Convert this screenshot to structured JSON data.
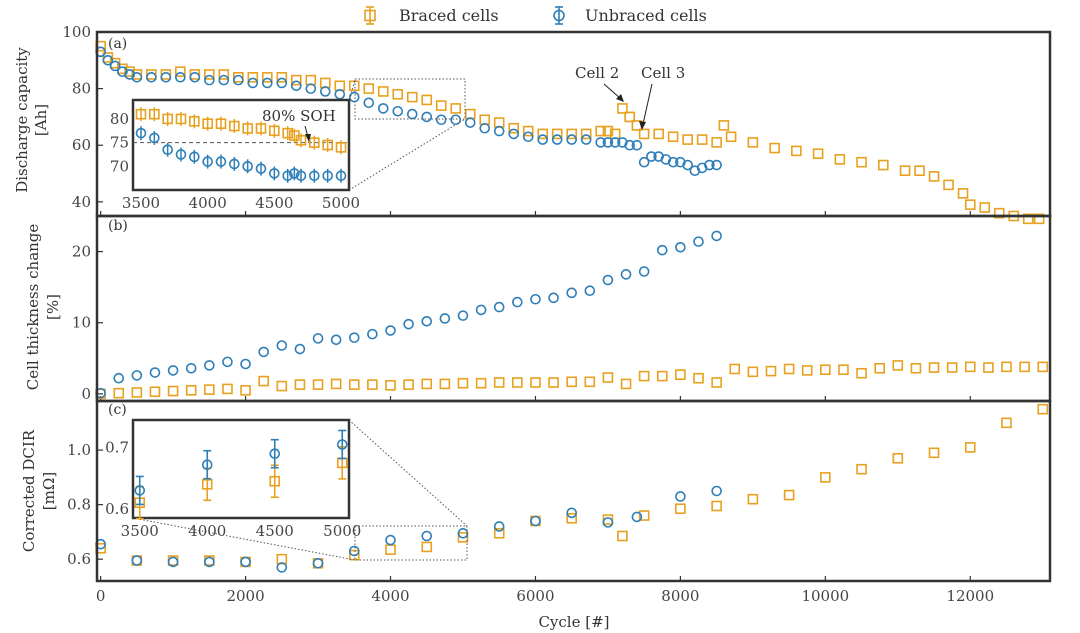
{
  "colors": {
    "braced": "#E8A01E",
    "unbraced": "#2E7FB8",
    "frame": "#333333"
  },
  "legend": {
    "braced_label": "Braced cells",
    "unbraced_label": "Unbraced cells"
  },
  "chart_data": [
    {
      "panel": "(a)",
      "type": "scatter",
      "ylabel_line1": "Discharge capacity",
      "ylabel_line2": "[Ah]",
      "xlim": [
        -50,
        13100
      ],
      "ylim": [
        35,
        100
      ],
      "yticks": [
        40,
        60,
        80,
        100
      ],
      "annotations": {
        "cell2": "Cell 2",
        "cell3": "Cell 3"
      },
      "series": [
        {
          "name": "Braced cells",
          "marker": "square",
          "x": [
            0,
            100,
            200,
            300,
            400,
            500,
            700,
            900,
            1100,
            1300,
            1500,
            1700,
            1900,
            2100,
            2300,
            2500,
            2700,
            2900,
            3100,
            3300,
            3500,
            3700,
            3900,
            4100,
            4300,
            4500,
            4700,
            4900,
            5100,
            5300,
            5500,
            5700,
            5900,
            6100,
            6300,
            6500,
            6700,
            6900,
            7000,
            7100,
            7200,
            7300,
            7400,
            7500,
            7700,
            7900,
            8100,
            8300,
            8500,
            8600,
            8700,
            9000,
            9300,
            9600,
            9900,
            10200,
            10500,
            10800,
            11100,
            11300,
            11500,
            11700,
            11900,
            12000,
            12200,
            12400,
            12600,
            12800,
            12950
          ],
          "y": [
            95,
            91,
            89,
            87,
            86,
            85,
            85,
            85,
            86,
            85,
            85,
            85,
            84,
            84,
            84,
            84,
            83,
            83,
            82,
            81,
            81,
            80,
            79,
            78,
            77,
            76,
            74,
            73,
            71,
            69,
            68,
            66,
            65,
            64,
            64,
            64,
            64,
            65,
            65,
            64,
            73,
            70,
            67,
            64,
            64,
            63,
            62,
            62,
            61,
            67,
            63,
            61,
            59,
            58,
            57,
            55,
            54,
            53,
            51,
            51,
            49,
            46,
            43,
            39,
            38,
            36,
            35,
            34,
            34
          ]
        },
        {
          "name": "Unbraced cells",
          "marker": "circle",
          "x": [
            0,
            100,
            200,
            300,
            400,
            500,
            700,
            900,
            1100,
            1300,
            1500,
            1700,
            1900,
            2100,
            2300,
            2500,
            2700,
            2900,
            3100,
            3300,
            3500,
            3700,
            3900,
            4100,
            4300,
            4500,
            4700,
            4900,
            5100,
            5300,
            5500,
            5700,
            5900,
            6100,
            6300,
            6500,
            6700,
            6900,
            7000,
            7100,
            7200,
            7300,
            7400,
            7500,
            7600,
            7700,
            7800,
            7900,
            8000,
            8100,
            8200,
            8300,
            8400,
            8500
          ],
          "y": [
            93,
            90,
            88,
            86,
            85,
            84,
            84,
            84,
            84,
            84,
            83,
            83,
            83,
            82,
            82,
            82,
            81,
            80,
            79,
            78,
            77,
            75,
            73,
            72,
            71,
            70,
            69,
            69,
            68,
            66,
            65,
            64,
            63,
            62,
            62,
            62,
            62,
            61,
            61,
            61,
            61,
            60,
            60,
            54,
            56,
            56,
            55,
            54,
            54,
            53,
            51,
            52,
            53,
            53
          ]
        }
      ],
      "inset": {
        "xlim": [
          3500,
          5000
        ],
        "ylim": [
          65,
          84
        ],
        "xticks": [
          3500,
          4000,
          4500,
          5000
        ],
        "yticks": [
          70,
          75,
          80
        ],
        "ref_line_y": 75,
        "annotation": "80% SOH",
        "braced": {
          "x": [
            3500,
            3600,
            3700,
            3800,
            3900,
            4000,
            4100,
            4200,
            4300,
            4400,
            4500,
            4600,
            4650,
            4700,
            4800,
            4900,
            5000
          ],
          "y": [
            81,
            81,
            80,
            80,
            79.5,
            79,
            79,
            78.5,
            78,
            78,
            77.5,
            77,
            76.5,
            75.5,
            75,
            74.5,
            74
          ]
        },
        "unbraced": {
          "x": [
            3500,
            3600,
            3700,
            3800,
            3900,
            4000,
            4100,
            4200,
            4300,
            4400,
            4500,
            4600,
            4650,
            4700,
            4800,
            4900,
            5000
          ],
          "y": [
            77,
            76,
            73.5,
            72.5,
            72,
            71,
            71,
            70.5,
            70,
            69.5,
            68.5,
            68,
            68.5,
            68,
            68,
            68,
            68
          ]
        }
      }
    },
    {
      "panel": "(b)",
      "type": "scatter",
      "ylabel_line1": "Cell thickness change",
      "ylabel_line2": "[%]",
      "xlim": [
        -50,
        13100
      ],
      "ylim": [
        -1,
        25
      ],
      "yticks": [
        0,
        10,
        20
      ],
      "series": [
        {
          "name": "Braced cells",
          "marker": "square",
          "x": [
            0,
            250,
            500,
            750,
            1000,
            1250,
            1500,
            1750,
            2000,
            2250,
            2500,
            2750,
            3000,
            3250,
            3500,
            3750,
            4000,
            4250,
            4500,
            4750,
            5000,
            5250,
            5500,
            5750,
            6000,
            6250,
            6500,
            6750,
            7000,
            7250,
            7500,
            7750,
            8000,
            8250,
            8500,
            8750,
            9000,
            9250,
            9500,
            9750,
            10000,
            10250,
            10500,
            10750,
            11000,
            11250,
            11500,
            11750,
            12000,
            12250,
            12500,
            12750,
            13000
          ],
          "y": [
            0,
            0.1,
            0.2,
            0.3,
            0.4,
            0.5,
            0.6,
            0.7,
            0.5,
            1.8,
            1.1,
            1.3,
            1.3,
            1.4,
            1.3,
            1.3,
            1.2,
            1.3,
            1.4,
            1.4,
            1.5,
            1.5,
            1.6,
            1.6,
            1.6,
            1.6,
            1.7,
            1.7,
            2.3,
            1.4,
            2.5,
            2.5,
            2.7,
            2.2,
            1.6,
            3.5,
            3.1,
            3.2,
            3.5,
            3.3,
            3.4,
            3.4,
            2.9,
            3.6,
            4.0,
            3.6,
            3.7,
            3.7,
            3.8,
            3.7,
            3.8,
            3.8,
            3.8
          ]
        },
        {
          "name": "Unbraced cells",
          "marker": "circle",
          "x": [
            0,
            250,
            500,
            750,
            1000,
            1250,
            1500,
            1750,
            2000,
            2250,
            2500,
            2750,
            3000,
            3250,
            3500,
            3750,
            4000,
            4250,
            4500,
            4750,
            5000,
            5250,
            5500,
            5750,
            6000,
            6250,
            6500,
            6750,
            7000,
            7250,
            7500,
            7750,
            8000,
            8250,
            8500
          ],
          "y": [
            0.1,
            2.2,
            2.6,
            3.0,
            3.3,
            3.6,
            4.0,
            4.5,
            4.2,
            5.9,
            6.8,
            6.3,
            7.8,
            7.6,
            7.9,
            8.4,
            8.9,
            9.8,
            10.2,
            10.6,
            11.0,
            11.8,
            12.2,
            12.9,
            13.3,
            13.5,
            14.2,
            14.5,
            16.0,
            16.8,
            17.2,
            20.2,
            20.6,
            21.4,
            22.2
          ]
        }
      ]
    },
    {
      "panel": "(c)",
      "type": "scatter",
      "ylabel_line1": "Corrected DCIR",
      "ylabel_line2": "[mΩ]",
      "xlabel": "Cycle [#]",
      "xlim": [
        -50,
        13100
      ],
      "ylim": [
        0.52,
        1.18
      ],
      "yticks": [
        0.6,
        0.8,
        1.0
      ],
      "xticks": [
        0,
        2000,
        4000,
        6000,
        8000,
        10000,
        12000
      ],
      "series": [
        {
          "name": "Braced cells",
          "marker": "square",
          "x": [
            0,
            500,
            1000,
            1500,
            2000,
            2500,
            3000,
            3500,
            4000,
            4500,
            5000,
            5500,
            6000,
            6500,
            7000,
            7200,
            7500,
            8000,
            8500,
            9000,
            9500,
            10000,
            10500,
            11000,
            11500,
            12000,
            12500,
            13000
          ],
          "y": [
            0.64,
            0.595,
            0.595,
            0.595,
            0.59,
            0.6,
            0.585,
            0.615,
            0.635,
            0.645,
            0.68,
            0.695,
            0.74,
            0.75,
            0.745,
            0.685,
            0.76,
            0.785,
            0.795,
            0.82,
            0.835,
            0.9,
            0.93,
            0.97,
            0.99,
            1.01,
            1.1,
            1.15
          ]
        },
        {
          "name": "Unbraced cells",
          "marker": "circle",
          "x": [
            0,
            500,
            1000,
            1500,
            2000,
            2500,
            3000,
            3500,
            4000,
            4500,
            5000,
            5500,
            6000,
            6500,
            7000,
            7400,
            8000,
            8500
          ],
          "y": [
            0.655,
            0.595,
            0.59,
            0.59,
            0.59,
            0.57,
            0.585,
            0.63,
            0.67,
            0.685,
            0.695,
            0.72,
            0.74,
            0.77,
            0.735,
            0.755,
            0.83,
            0.85
          ]
        }
      ],
      "inset": {
        "xlim": [
          3450,
          5050
        ],
        "ylim": [
          0.585,
          0.745
        ],
        "xticks": [
          3500,
          4000,
          4500,
          5000
        ],
        "yticks": [
          0.6,
          0.7
        ],
        "braced": {
          "x": [
            3500,
            4000,
            4500,
            5000
          ],
          "y": [
            0.61,
            0.64,
            0.645,
            0.675
          ]
        },
        "unbraced": {
          "x": [
            3500,
            4000,
            4500,
            5000
          ],
          "y": [
            0.63,
            0.672,
            0.69,
            0.705
          ]
        }
      }
    }
  ]
}
